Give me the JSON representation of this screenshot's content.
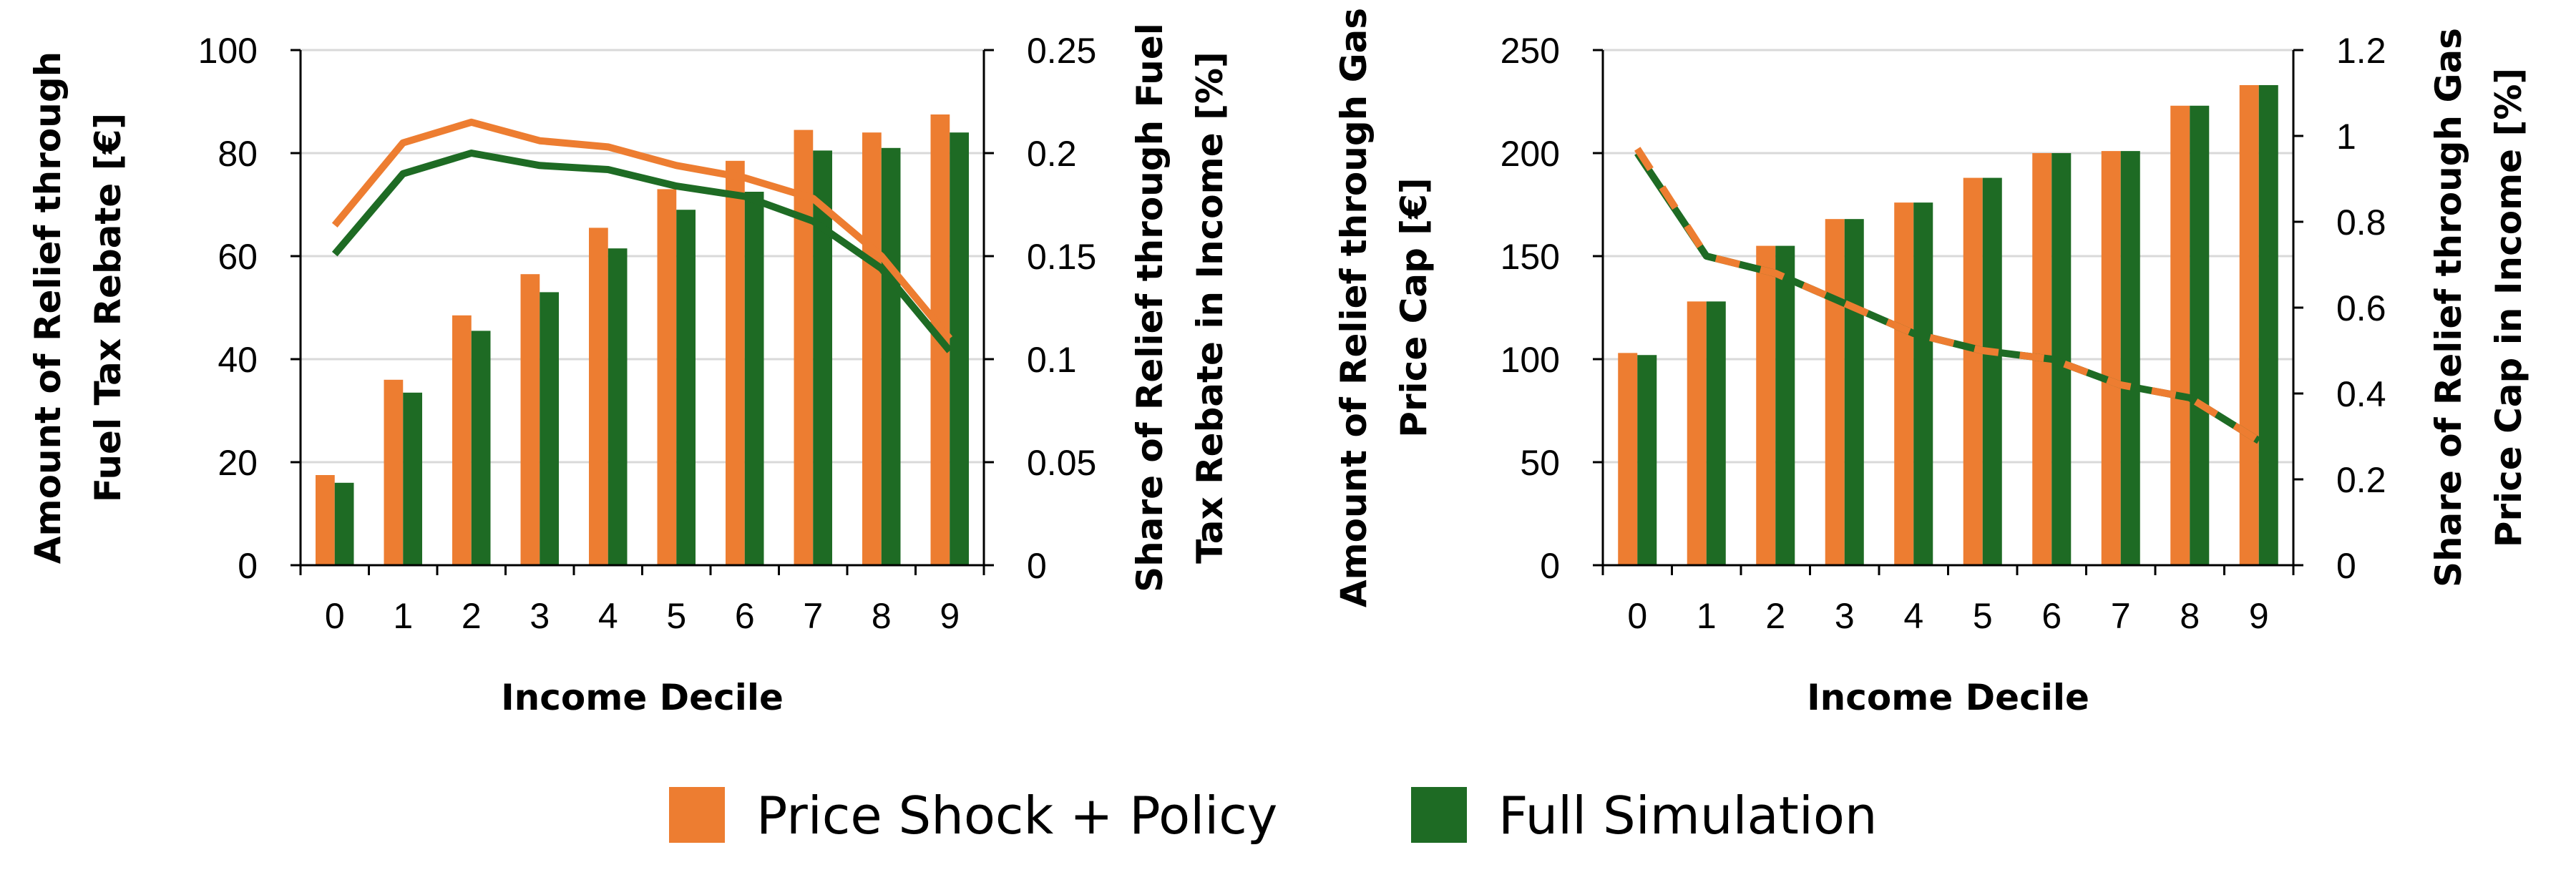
{
  "colors": {
    "policy": "#ED7D31",
    "full": "#1E6B24",
    "grid": "#D9D9D9",
    "axis": "#000000"
  },
  "legend": [
    {
      "label": "Price Shock + Policy",
      "color": "#ED7D31"
    },
    {
      "label": "Full Simulation",
      "color": "#1E6B24"
    }
  ],
  "chart_data": [
    {
      "type": "bar+line",
      "title": "",
      "xlabel": "Income Decile",
      "ylabel": "Amount of Relief through Fuel Tax Rebate [€]",
      "ylabel2": "Share of Relief through Fuel Tax Rebate in Income [%]",
      "categories": [
        "0",
        "1",
        "2",
        "3",
        "4",
        "5",
        "6",
        "7",
        "8",
        "9"
      ],
      "ylim": [
        0,
        100
      ],
      "yticks": [
        "0",
        "20",
        "40",
        "60",
        "80",
        "100"
      ],
      "y2lim": [
        0,
        0.25
      ],
      "y2ticks": [
        "0",
        "0.05",
        "0.1",
        "0.15",
        "0.2",
        "0.25"
      ],
      "grid": true,
      "line_style": "solid",
      "series": [
        {
          "name": "Price Shock + Policy",
          "kind": "bar",
          "axis": "left",
          "color": "#ED7D31",
          "values": [
            17.5,
            36,
            48.5,
            56.5,
            65.5,
            73,
            78.5,
            84.5,
            84,
            87.5
          ]
        },
        {
          "name": "Full Simulation",
          "kind": "bar",
          "axis": "left",
          "color": "#1E6B24",
          "values": [
            16,
            33.5,
            45.5,
            53,
            61.5,
            69,
            72.5,
            80.5,
            81,
            84
          ]
        },
        {
          "name": "Price Shock + Policy",
          "kind": "line",
          "axis": "right",
          "color": "#ED7D31",
          "values": [
            0.165,
            0.205,
            0.215,
            0.206,
            0.203,
            0.194,
            0.188,
            0.178,
            0.15,
            0.11
          ]
        },
        {
          "name": "Full Simulation",
          "kind": "line",
          "axis": "right",
          "color": "#1E6B24",
          "values": [
            0.151,
            0.19,
            0.2,
            0.194,
            0.192,
            0.184,
            0.179,
            0.167,
            0.144,
            0.104
          ]
        }
      ]
    },
    {
      "type": "bar+line",
      "title": "",
      "xlabel": "Income Decile",
      "ylabel": "Amount of Relief through Gas Price Cap [€]",
      "ylabel2": "Share of Relief through Gas Price Cap in Income [%]",
      "categories": [
        "0",
        "1",
        "2",
        "3",
        "4",
        "5",
        "6",
        "7",
        "8",
        "9"
      ],
      "ylim": [
        0,
        250
      ],
      "yticks": [
        "0",
        "50",
        "100",
        "150",
        "200",
        "250"
      ],
      "y2lim": [
        0,
        1.2
      ],
      "y2ticks": [
        "0",
        "0.2",
        "0.4",
        "0.6",
        "0.8",
        "1",
        "1.2"
      ],
      "grid": true,
      "line_style": "dashed",
      "series": [
        {
          "name": "Price Shock + Policy",
          "kind": "bar",
          "axis": "left",
          "color": "#ED7D31",
          "values": [
            103,
            128,
            155,
            168,
            176,
            188,
            200,
            201,
            223,
            233
          ]
        },
        {
          "name": "Full Simulation",
          "kind": "bar",
          "axis": "left",
          "color": "#1E6B24",
          "values": [
            102,
            128,
            155,
            168,
            176,
            188,
            200,
            201,
            223,
            233
          ]
        },
        {
          "name": "Price Shock + Policy",
          "kind": "line",
          "axis": "right",
          "color": "#ED7D31",
          "values": [
            0.97,
            0.72,
            0.68,
            0.61,
            0.54,
            0.5,
            0.48,
            0.42,
            0.39,
            0.29
          ]
        },
        {
          "name": "Full Simulation",
          "kind": "line",
          "axis": "right",
          "color": "#1E6B24",
          "values": [
            0.96,
            0.72,
            0.68,
            0.61,
            0.54,
            0.5,
            0.48,
            0.42,
            0.39,
            0.29
          ]
        }
      ]
    }
  ]
}
